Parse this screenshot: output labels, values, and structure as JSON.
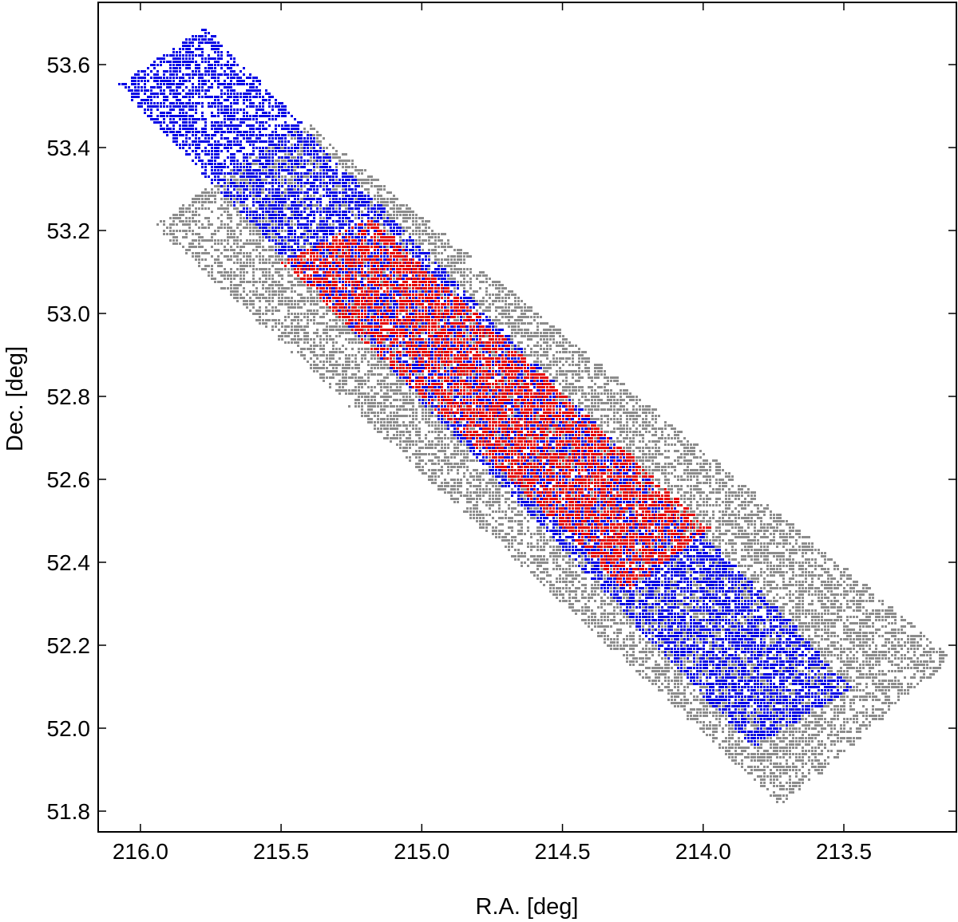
{
  "chart_data": {
    "type": "scatter",
    "xlabel": "R.A. [deg]",
    "ylabel": "Dec. [deg]",
    "xlim": [
      216.15,
      213.1
    ],
    "ylim": [
      51.75,
      53.75
    ],
    "x_reversed": true,
    "x_ticks": [
      216.0,
      215.5,
      215.0,
      214.5,
      214.0,
      213.5
    ],
    "x_tick_labels": [
      "216.0",
      "215.5",
      "215.0",
      "214.5",
      "214.0",
      "213.5"
    ],
    "y_ticks": [
      51.8,
      52.0,
      52.2,
      52.4,
      52.6,
      52.8,
      53.0,
      53.2,
      53.4,
      53.6
    ],
    "y_tick_labels": [
      "51.8",
      "52.0",
      "52.2",
      "52.4",
      "52.6",
      "52.8",
      "53.0",
      "53.2",
      "53.4",
      "53.6"
    ],
    "grid": false,
    "legend": "none",
    "series": [
      {
        "color": "#8c8c8c",
        "density": 0.55,
        "footprint_ra_dec": [
          [
            215.95,
            53.21
          ],
          [
            215.42,
            53.47
          ],
          [
            213.12,
            52.17
          ],
          [
            213.72,
            51.81
          ]
        ]
      },
      {
        "color": "#0000e6",
        "density": 0.6,
        "footprint_ra_dec": [
          [
            216.08,
            53.55
          ],
          [
            215.77,
            53.69
          ],
          [
            213.47,
            52.1
          ],
          [
            213.82,
            51.95
          ]
        ]
      },
      {
        "color": "#e60000",
        "density": 0.55,
        "footprint_ra_dec": [
          [
            215.5,
            53.12
          ],
          [
            215.18,
            53.23
          ],
          [
            213.98,
            52.48
          ],
          [
            214.27,
            52.33
          ]
        ]
      }
    ]
  }
}
